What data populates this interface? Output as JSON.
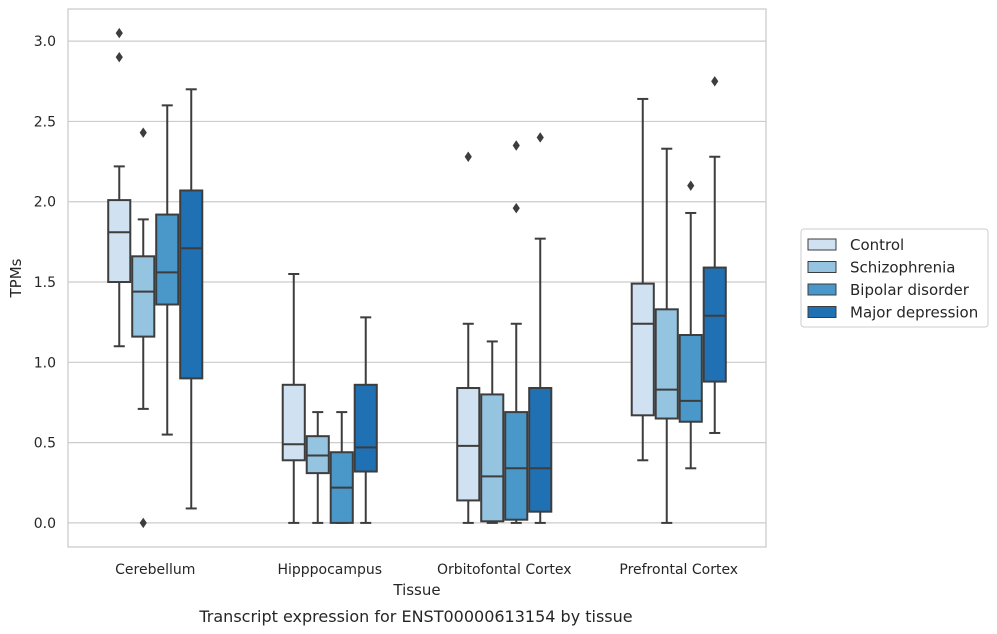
{
  "caption": "Transcript expression for ENST00000613154 by tissue",
  "chart_data": {
    "type": "boxplot",
    "xlabel": "Tissue",
    "ylabel": "TPMs",
    "ylim": [
      -0.15,
      3.2
    ],
    "yticks": [
      0.0,
      0.5,
      1.0,
      1.5,
      2.0,
      2.5,
      3.0
    ],
    "ytick_labels": [
      "0.0",
      "0.5",
      "1.0",
      "1.5",
      "2.0",
      "2.5",
      "3.0"
    ],
    "grid": "horizontal",
    "legend_position": "right",
    "categories": [
      "Cerebellum",
      "Hipppocampus",
      "Orbitofontal Cortex",
      "Prefrontal Cortex"
    ],
    "series": [
      {
        "name": "Control",
        "color": "#d0e1f2",
        "boxes": [
          {
            "whislo": 1.1,
            "q1": 1.5,
            "med": 1.81,
            "q3": 2.01,
            "whishi": 2.22,
            "fliers": [
              2.9,
              3.05
            ]
          },
          {
            "whislo": 0.0,
            "q1": 0.39,
            "med": 0.49,
            "q3": 0.86,
            "whishi": 1.55,
            "fliers": []
          },
          {
            "whislo": 0.0,
            "q1": 0.14,
            "med": 0.48,
            "q3": 0.84,
            "whishi": 1.24,
            "fliers": [
              2.28
            ]
          },
          {
            "whislo": 0.39,
            "q1": 0.67,
            "med": 1.24,
            "q3": 1.49,
            "whishi": 2.64,
            "fliers": []
          }
        ]
      },
      {
        "name": "Schizophrenia",
        "color": "#94c4df",
        "boxes": [
          {
            "whislo": 0.71,
            "q1": 1.16,
            "med": 1.44,
            "q3": 1.66,
            "whishi": 1.89,
            "fliers": [
              0.0,
              2.43
            ]
          },
          {
            "whislo": 0.0,
            "q1": 0.31,
            "med": 0.42,
            "q3": 0.54,
            "whishi": 0.69,
            "fliers": []
          },
          {
            "whislo": 0.0,
            "q1": 0.01,
            "med": 0.29,
            "q3": 0.8,
            "whishi": 1.13,
            "fliers": []
          },
          {
            "whislo": 0.0,
            "q1": 0.65,
            "med": 0.83,
            "q3": 1.33,
            "whishi": 2.33,
            "fliers": []
          }
        ]
      },
      {
        "name": "Bipolar disorder",
        "color": "#4a98c9",
        "boxes": [
          {
            "whislo": 0.55,
            "q1": 1.36,
            "med": 1.56,
            "q3": 1.92,
            "whishi": 2.6,
            "fliers": []
          },
          {
            "whislo": 0.0,
            "q1": 0.0,
            "med": 0.22,
            "q3": 0.44,
            "whishi": 0.69,
            "fliers": []
          },
          {
            "whislo": 0.0,
            "q1": 0.02,
            "med": 0.34,
            "q3": 0.69,
            "whishi": 1.24,
            "fliers": [
              1.96,
              2.35
            ]
          },
          {
            "whislo": 0.34,
            "q1": 0.63,
            "med": 0.76,
            "q3": 1.17,
            "whishi": 1.93,
            "fliers": [
              2.1
            ]
          }
        ]
      },
      {
        "name": "Major depression",
        "color": "#2070b4",
        "boxes": [
          {
            "whislo": 0.09,
            "q1": 0.9,
            "med": 1.71,
            "q3": 2.07,
            "whishi": 2.7,
            "fliers": []
          },
          {
            "whislo": 0.0,
            "q1": 0.32,
            "med": 0.47,
            "q3": 0.86,
            "whishi": 1.28,
            "fliers": []
          },
          {
            "whislo": 0.0,
            "q1": 0.07,
            "med": 0.34,
            "q3": 0.84,
            "whishi": 1.77,
            "fliers": [
              2.4
            ]
          },
          {
            "whislo": 0.56,
            "q1": 0.88,
            "med": 1.29,
            "q3": 1.59,
            "whishi": 2.28,
            "fliers": [
              2.75
            ]
          }
        ]
      }
    ]
  }
}
